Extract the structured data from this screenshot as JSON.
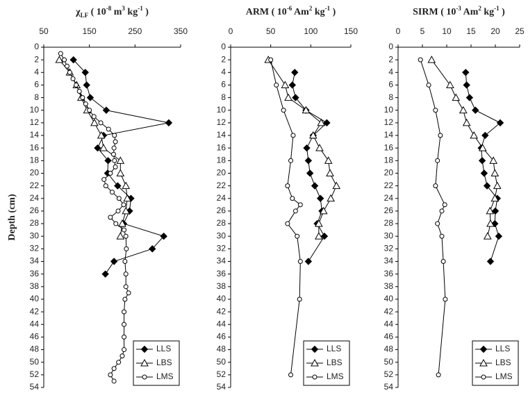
{
  "chart_data": [
    {
      "type": "line",
      "title": [
        "χ",
        "LF",
        " ( 10",
        "-8",
        " m",
        "3",
        " kg",
        "-1",
        " )"
      ],
      "ylabel": "Depth (cm)",
      "ylim": [
        0,
        54
      ],
      "y_inverted": true,
      "yticks": [
        0,
        2,
        4,
        6,
        8,
        10,
        12,
        14,
        16,
        18,
        20,
        22,
        24,
        26,
        28,
        30,
        32,
        34,
        36,
        38,
        40,
        42,
        44,
        46,
        48,
        50,
        52,
        54
      ],
      "xlim": [
        50,
        350
      ],
      "xticks": [
        50,
        150,
        250,
        350
      ],
      "legend": "lower right",
      "series": [
        {
          "name": "LLS",
          "marker": "diamond",
          "color": "#000000",
          "depth": [
            2,
            4,
            6,
            8,
            10,
            12,
            14,
            16,
            18,
            20,
            22,
            24,
            26,
            28,
            30,
            32,
            34,
            36
          ],
          "values": [
            115,
            141,
            144,
            152,
            187,
            324,
            181,
            168,
            191,
            190,
            212,
            241,
            238,
            225,
            313,
            288,
            204,
            185
          ]
        },
        {
          "name": "LBS",
          "marker": "triangle",
          "color": "#000000",
          "depth": [
            2,
            4,
            6,
            8,
            10,
            12,
            14,
            16,
            18,
            20,
            22,
            24,
            26,
            28,
            30
          ],
          "values": [
            84,
            107,
            122,
            132,
            145,
            161,
            176,
            181,
            218,
            218,
            230,
            233,
            230,
            222,
            218
          ]
        },
        {
          "name": "LMS",
          "marker": "circle",
          "color": "#000000",
          "depth": [
            1,
            2,
            3,
            4,
            5,
            6,
            7,
            8,
            9,
            10,
            11,
            12,
            13,
            14,
            15,
            16,
            17,
            18,
            19,
            20,
            21,
            22,
            23,
            24,
            25,
            26,
            27,
            28,
            29,
            30,
            32,
            34,
            36,
            38,
            39,
            40,
            42,
            44,
            46,
            48,
            49,
            50,
            51,
            52,
            53
          ],
          "values": [
            87,
            95,
            101,
            107,
            114,
            121,
            128,
            135,
            142,
            150,
            160,
            175,
            192,
            205,
            207,
            204,
            203,
            205,
            207,
            196,
            182,
            186,
            200,
            215,
            225,
            213,
            196,
            208,
            226,
            230,
            231,
            228,
            230,
            230,
            236,
            228,
            226,
            226,
            226,
            226,
            222,
            214,
            204,
            196,
            204
          ]
        }
      ]
    },
    {
      "type": "line",
      "title": [
        "ARM ( 10",
        "-6",
        " Am",
        "2",
        " kg",
        "-1",
        " )"
      ],
      "ylim": [
        0,
        54
      ],
      "y_inverted": true,
      "yticks": [
        0,
        2,
        4,
        6,
        8,
        10,
        12,
        14,
        16,
        18,
        20,
        22,
        24,
        26,
        28,
        30,
        32,
        34,
        36,
        38,
        40,
        42,
        44,
        46,
        48,
        50,
        52,
        54
      ],
      "xlim": [
        0,
        150
      ],
      "xticks": [
        0,
        50,
        100,
        150
      ],
      "legend": "lower right",
      "series": [
        {
          "name": "LLS",
          "marker": "diamond",
          "color": "#000000",
          "depth": [
            4,
            6,
            8,
            10,
            12,
            14,
            16,
            18,
            20,
            22,
            24,
            26,
            28,
            30,
            34
          ],
          "values": [
            80,
            77,
            81,
            94,
            120,
            103,
            95,
            97,
            99,
            105,
            112,
            114,
            108,
            117,
            97
          ]
        },
        {
          "name": "LBS",
          "marker": "triangle",
          "color": "#000000",
          "depth": [
            2,
            6,
            8,
            10,
            12,
            14,
            16,
            18,
            20,
            22,
            24,
            26,
            28,
            30
          ],
          "values": [
            47,
            68,
            72,
            94,
            113,
            103,
            111,
            122,
            124,
            132,
            125,
            116,
            110,
            110
          ]
        },
        {
          "name": "LMS",
          "marker": "circle",
          "color": "#000000",
          "depth": [
            2,
            6,
            10,
            14,
            18,
            22,
            24,
            25,
            26,
            28,
            30,
            34,
            40,
            52
          ],
          "values": [
            50,
            57,
            66,
            78,
            75,
            71,
            77,
            87,
            81,
            71,
            83,
            87,
            86,
            75
          ]
        }
      ]
    },
    {
      "type": "line",
      "title": [
        "SIRM ( 10",
        "-3",
        " Am",
        "2",
        " kg",
        "-1",
        " )"
      ],
      "ylim": [
        0,
        54
      ],
      "y_inverted": true,
      "yticks": [
        0,
        2,
        4,
        6,
        8,
        10,
        12,
        14,
        16,
        18,
        20,
        22,
        24,
        26,
        28,
        30,
        32,
        34,
        36,
        38,
        40,
        42,
        44,
        46,
        48,
        50,
        52,
        54
      ],
      "xlim": [
        0,
        25
      ],
      "xticks": [
        0,
        5,
        10,
        15,
        20,
        25
      ],
      "legend": "lower right",
      "series": [
        {
          "name": "LLS",
          "marker": "diamond",
          "color": "#000000",
          "depth": [
            4,
            6,
            8,
            10,
            12,
            14,
            16,
            18,
            20,
            22,
            24,
            26,
            28,
            30,
            34
          ],
          "values": [
            13.9,
            14.1,
            14.7,
            15.9,
            21,
            17.9,
            17.1,
            17.3,
            17.7,
            18.3,
            20.4,
            20,
            19.9,
            20.7,
            19
          ]
        },
        {
          "name": "LBS",
          "marker": "triangle",
          "color": "#000000",
          "depth": [
            2,
            6,
            8,
            10,
            12,
            14,
            16,
            18,
            20,
            22,
            24,
            26,
            28,
            30
          ],
          "values": [
            6.9,
            10.7,
            11.9,
            13.4,
            14.1,
            15.6,
            17.4,
            19.6,
            19.9,
            20.4,
            19.9,
            18.9,
            19,
            18.4
          ]
        },
        {
          "name": "LMS",
          "marker": "circle",
          "color": "#000000",
          "depth": [
            2,
            6,
            10,
            14,
            18,
            22,
            25,
            26,
            28,
            30,
            34,
            40,
            52
          ],
          "values": [
            4.6,
            6.3,
            7.7,
            8.7,
            8.1,
            7.7,
            9.6,
            9,
            8.1,
            9,
            9.3,
            9.7,
            8.3
          ]
        }
      ]
    }
  ]
}
